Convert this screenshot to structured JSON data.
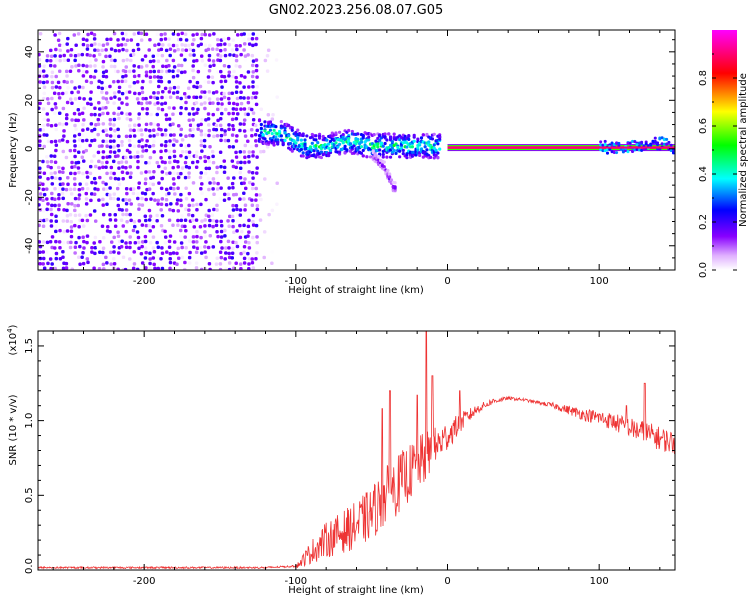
{
  "chart_data": [
    {
      "type": "heatmap",
      "title": "GN02.2023.256.08.07.G05",
      "xlabel": "Height of straight line (km)",
      "ylabel": "Frequency (Hz)",
      "xlim": [
        -270,
        150
      ],
      "ylim": [
        -50,
        49
      ],
      "x_ticks": [
        -200,
        -100,
        0,
        100
      ],
      "y_ticks": [
        -40,
        -20,
        0,
        20,
        40
      ],
      "colorbar": {
        "label": "Normalized spectral amplitude",
        "range": [
          0,
          1
        ],
        "ticks": [
          "0.0",
          "0.2",
          "0.4",
          "0.6",
          "0.8"
        ],
        "colors": [
          "#ffffff",
          "#8800ff",
          "#0000ff",
          "#00ffff",
          "#00ff00",
          "#ffff00",
          "#ff0000",
          "#ff00ff"
        ]
      },
      "features": [
        {
          "name": "noise_region",
          "x_range": [
            -270,
            -125
          ],
          "freq_range": [
            -50,
            49
          ],
          "amplitude": 0.08
        },
        {
          "name": "emerging_tone",
          "x_range": [
            -125,
            -5
          ],
          "freq_center": [
            [
              -125,
              7
            ],
            [
              -110,
              6
            ],
            [
              -95,
              1
            ],
            [
              -80,
              1
            ],
            [
              -65,
              3
            ],
            [
              -50,
              1
            ],
            [
              -35,
              1
            ],
            [
              -20,
              1
            ],
            [
              -5,
              1
            ]
          ],
          "amplitude": 0.45
        },
        {
          "name": "branch",
          "x_range": [
            -50,
            -35
          ],
          "freq_center": [
            [
              -50,
              -3
            ],
            [
              -42,
              -8
            ],
            [
              -37,
              -16
            ]
          ],
          "amplitude": 0.15
        },
        {
          "name": "steady_tone",
          "x_range": [
            0,
            150
          ],
          "freq_center": 0.5,
          "amplitude": 0.9
        }
      ]
    },
    {
      "type": "line",
      "xlabel": "Height of straight line (km)",
      "ylabel": "SNR (10 * v/v)",
      "y_multiplier": "(x10",
      "y_multiplier_exp": "4",
      "y_multiplier_close": ")",
      "xlim": [
        -270,
        150
      ],
      "ylim": [
        0,
        1.6
      ],
      "x_ticks": [
        -200,
        -100,
        0,
        100
      ],
      "y_ticks": [
        "0.0",
        "0.5",
        "1.0",
        "1.5"
      ],
      "line_color": "#ee3333",
      "series": [
        {
          "x": [
            -270,
            -200,
            -120,
            -100,
            -90,
            -80,
            -70,
            -60,
            -50,
            -40,
            -30,
            -20,
            -15,
            -10,
            -5,
            0,
            10,
            20,
            30,
            40,
            50,
            60,
            70,
            80,
            90,
            100,
            110,
            120,
            130,
            140,
            150
          ],
          "values": [
            0.01,
            0.01,
            0.01,
            0.02,
            0.12,
            0.2,
            0.25,
            0.3,
            0.38,
            0.5,
            0.6,
            0.7,
            0.75,
            0.8,
            0.85,
            0.9,
            1.0,
            1.08,
            1.13,
            1.15,
            1.14,
            1.12,
            1.1,
            1.07,
            1.04,
            1.02,
            0.99,
            0.95,
            0.92,
            0.88,
            0.85
          ],
          "noise": [
            0,
            0,
            0,
            0.01,
            0.08,
            0.12,
            0.14,
            0.16,
            0.18,
            0.2,
            0.2,
            0.18,
            0.18,
            0.15,
            0.12,
            0.1,
            0.06,
            0.03,
            0.02,
            0.01,
            0.01,
            0.01,
            0.02,
            0.03,
            0.04,
            0.05,
            0.06,
            0.07,
            0.08,
            0.08,
            0.08
          ],
          "peaks": [
            [
              -43,
              1.08
            ],
            [
              -38,
              1.2
            ],
            [
              -20,
              1.17
            ],
            [
              -14,
              1.6
            ],
            [
              -10,
              1.3
            ],
            [
              8,
              1.2
            ],
            [
              118,
              1.1
            ],
            [
              130,
              1.25
            ]
          ]
        }
      ]
    }
  ]
}
